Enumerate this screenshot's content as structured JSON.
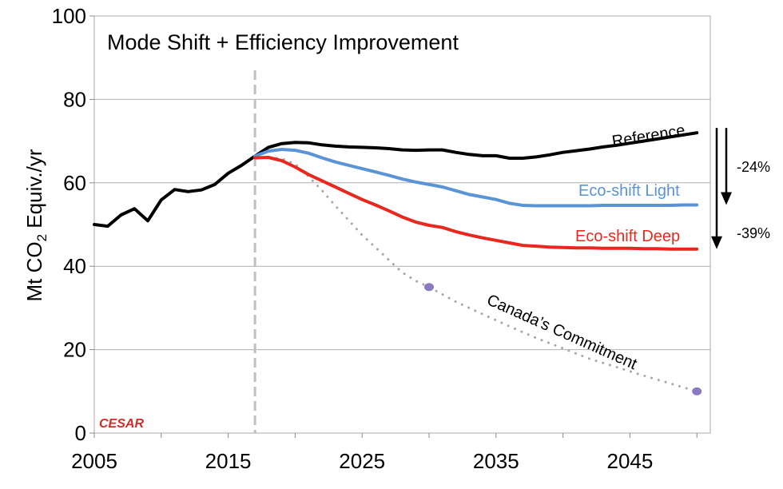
{
  "chart_data": {
    "type": "line",
    "title": "Mode Shift + Efficiency Improvement",
    "ylabel": {
      "main": "Mt CO",
      "sub": "2",
      "rest": " Equiv./yr"
    },
    "xlim": [
      2005,
      2051
    ],
    "ylim": [
      0,
      100
    ],
    "xticks": [
      2005,
      2015,
      2025,
      2035,
      2045
    ],
    "yticks": [
      0,
      20,
      40,
      60,
      80,
      100
    ],
    "grid": true,
    "policy_year": 2017,
    "series": [
      {
        "name": "Reference",
        "color": "#000000",
        "style": "solid",
        "x": [
          2005,
          2006,
          2007,
          2008,
          2009,
          2010,
          2011,
          2012,
          2013,
          2014,
          2015,
          2016,
          2017,
          2018,
          2019,
          2020,
          2021,
          2022,
          2023,
          2024,
          2025,
          2026,
          2027,
          2028,
          2029,
          2030,
          2031,
          2032,
          2033,
          2034,
          2035,
          2036,
          2037,
          2038,
          2039,
          2040,
          2041,
          2042,
          2043,
          2044,
          2045,
          2046,
          2047,
          2048,
          2049,
          2050
        ],
        "y": [
          50,
          49.6,
          52.3,
          53.8,
          50.9,
          55.9,
          58.4,
          57.9,
          58.3,
          59.6,
          62.3,
          64.2,
          66.4,
          68.5,
          69.4,
          69.7,
          69.6,
          69.1,
          68.8,
          68.6,
          68.5,
          68.4,
          68.2,
          67.9,
          67.8,
          67.9,
          67.9,
          67.3,
          66.8,
          66.5,
          66.5,
          65.9,
          65.9,
          66.2,
          66.7,
          67.3,
          67.7,
          68.1,
          68.6,
          69.0,
          69.5,
          70.0,
          70.5,
          71.0,
          71.5,
          72.0
        ]
      },
      {
        "name": "Eco-shift Light",
        "color": "#5b94d6",
        "style": "solid",
        "x": [
          2017,
          2018,
          2019,
          2020,
          2021,
          2022,
          2023,
          2024,
          2025,
          2026,
          2027,
          2028,
          2029,
          2030,
          2031,
          2032,
          2033,
          2034,
          2035,
          2036,
          2037,
          2038,
          2039,
          2040,
          2041,
          2042,
          2043,
          2044,
          2045,
          2046,
          2047,
          2048,
          2049,
          2050
        ],
        "y": [
          66.4,
          67.6,
          68.0,
          67.8,
          67.1,
          66.0,
          65.0,
          64.2,
          63.4,
          62.6,
          61.8,
          60.9,
          60.2,
          59.6,
          59.0,
          58.1,
          57.2,
          56.6,
          56.0,
          55.1,
          54.6,
          54.5,
          54.5,
          54.5,
          54.5,
          54.5,
          54.6,
          54.6,
          54.6,
          54.6,
          54.6,
          54.6,
          54.7,
          54.7
        ]
      },
      {
        "name": "Eco-shift Deep",
        "color": "#e8281e",
        "style": "solid",
        "x": [
          2017,
          2018,
          2019,
          2020,
          2021,
          2022,
          2023,
          2024,
          2025,
          2026,
          2027,
          2028,
          2029,
          2030,
          2031,
          2032,
          2033,
          2034,
          2035,
          2036,
          2037,
          2038,
          2039,
          2040,
          2041,
          2042,
          2043,
          2044,
          2045,
          2046,
          2047,
          2048,
          2049,
          2050
        ],
        "y": [
          66.0,
          66.1,
          65.3,
          63.8,
          62.0,
          60.5,
          59.0,
          57.5,
          56.0,
          54.7,
          53.3,
          51.8,
          50.6,
          49.8,
          49.3,
          48.3,
          47.5,
          46.8,
          46.2,
          45.6,
          45.0,
          44.8,
          44.6,
          44.5,
          44.4,
          44.4,
          44.3,
          44.3,
          44.3,
          44.2,
          44.2,
          44.1,
          44.1,
          44.1
        ]
      },
      {
        "name": "Canada’s Commitment",
        "color": "#a8a8a8",
        "style": "dotted",
        "x": [
          2017,
          2018,
          2019,
          2020,
          2021,
          2022,
          2023,
          2024,
          2025,
          2026,
          2027,
          2028,
          2029,
          2030,
          2032,
          2034,
          2036,
          2038,
          2040,
          2042,
          2044,
          2046,
          2048,
          2050
        ],
        "y": [
          66.0,
          66.1,
          65.8,
          64.5,
          61.5,
          58.2,
          54.5,
          51.0,
          47.5,
          44.5,
          41.5,
          38.5,
          36.5,
          35.0,
          31.5,
          28.5,
          25.6,
          22.8,
          20.3,
          17.8,
          15.8,
          13.8,
          11.9,
          10.0
        ],
        "markers": [
          {
            "x": 2030,
            "y": 35
          },
          {
            "x": 2050,
            "y": 10
          }
        ],
        "marker_color": "#8b79c1"
      }
    ],
    "reductions": [
      {
        "label": "-24%",
        "from": 72,
        "to": 54.7
      },
      {
        "label": "-39%",
        "from": 72,
        "to": 44.1
      }
    ]
  },
  "logo": {
    "text": "CESAR",
    "color": "#d32a2a"
  }
}
